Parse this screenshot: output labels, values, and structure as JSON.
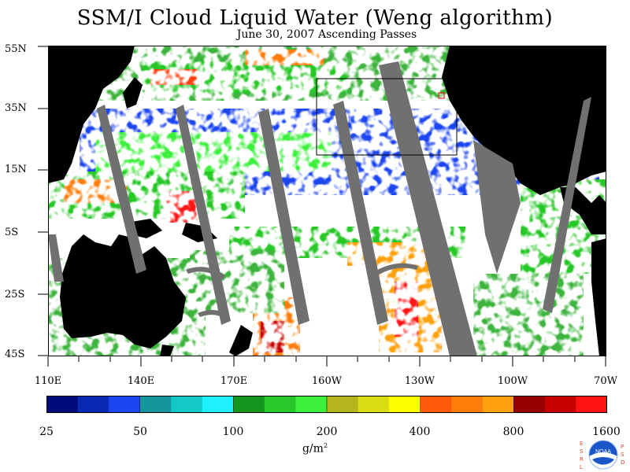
{
  "title": "SSM/I Cloud Liquid Water (Weng algorithm)",
  "subtitle": "June 30, 2007  Ascending Passes",
  "lat_labels": [
    "55N",
    "35N",
    "15N",
    "5S",
    "25S",
    "45S"
  ],
  "lon_labels": [
    "110E",
    "140E",
    "170E",
    "160W",
    "130W",
    "100W",
    "70W"
  ],
  "colorbar": {
    "colors": [
      "#000a78",
      "#0a2ab4",
      "#1e46f0",
      "#14969b",
      "#14c8c8",
      "#1ef0ff",
      "#14961e",
      "#28c828",
      "#3cf03c",
      "#b4b41e",
      "#dcdc14",
      "#ffff00",
      "#ff5a0a",
      "#ff7d0a",
      "#ffa00f",
      "#960000",
      "#c80000",
      "#ff1414"
    ],
    "tick_labels": [
      "25",
      "50",
      "100",
      "200",
      "400",
      "800",
      "1600"
    ]
  },
  "units": {
    "base": "g/m",
    "exp": "2"
  },
  "logo": {
    "left_letters": [
      "E",
      "S",
      "R",
      "L"
    ],
    "right_letters": [
      "P",
      "S",
      "D"
    ],
    "center": "NOAA"
  }
}
